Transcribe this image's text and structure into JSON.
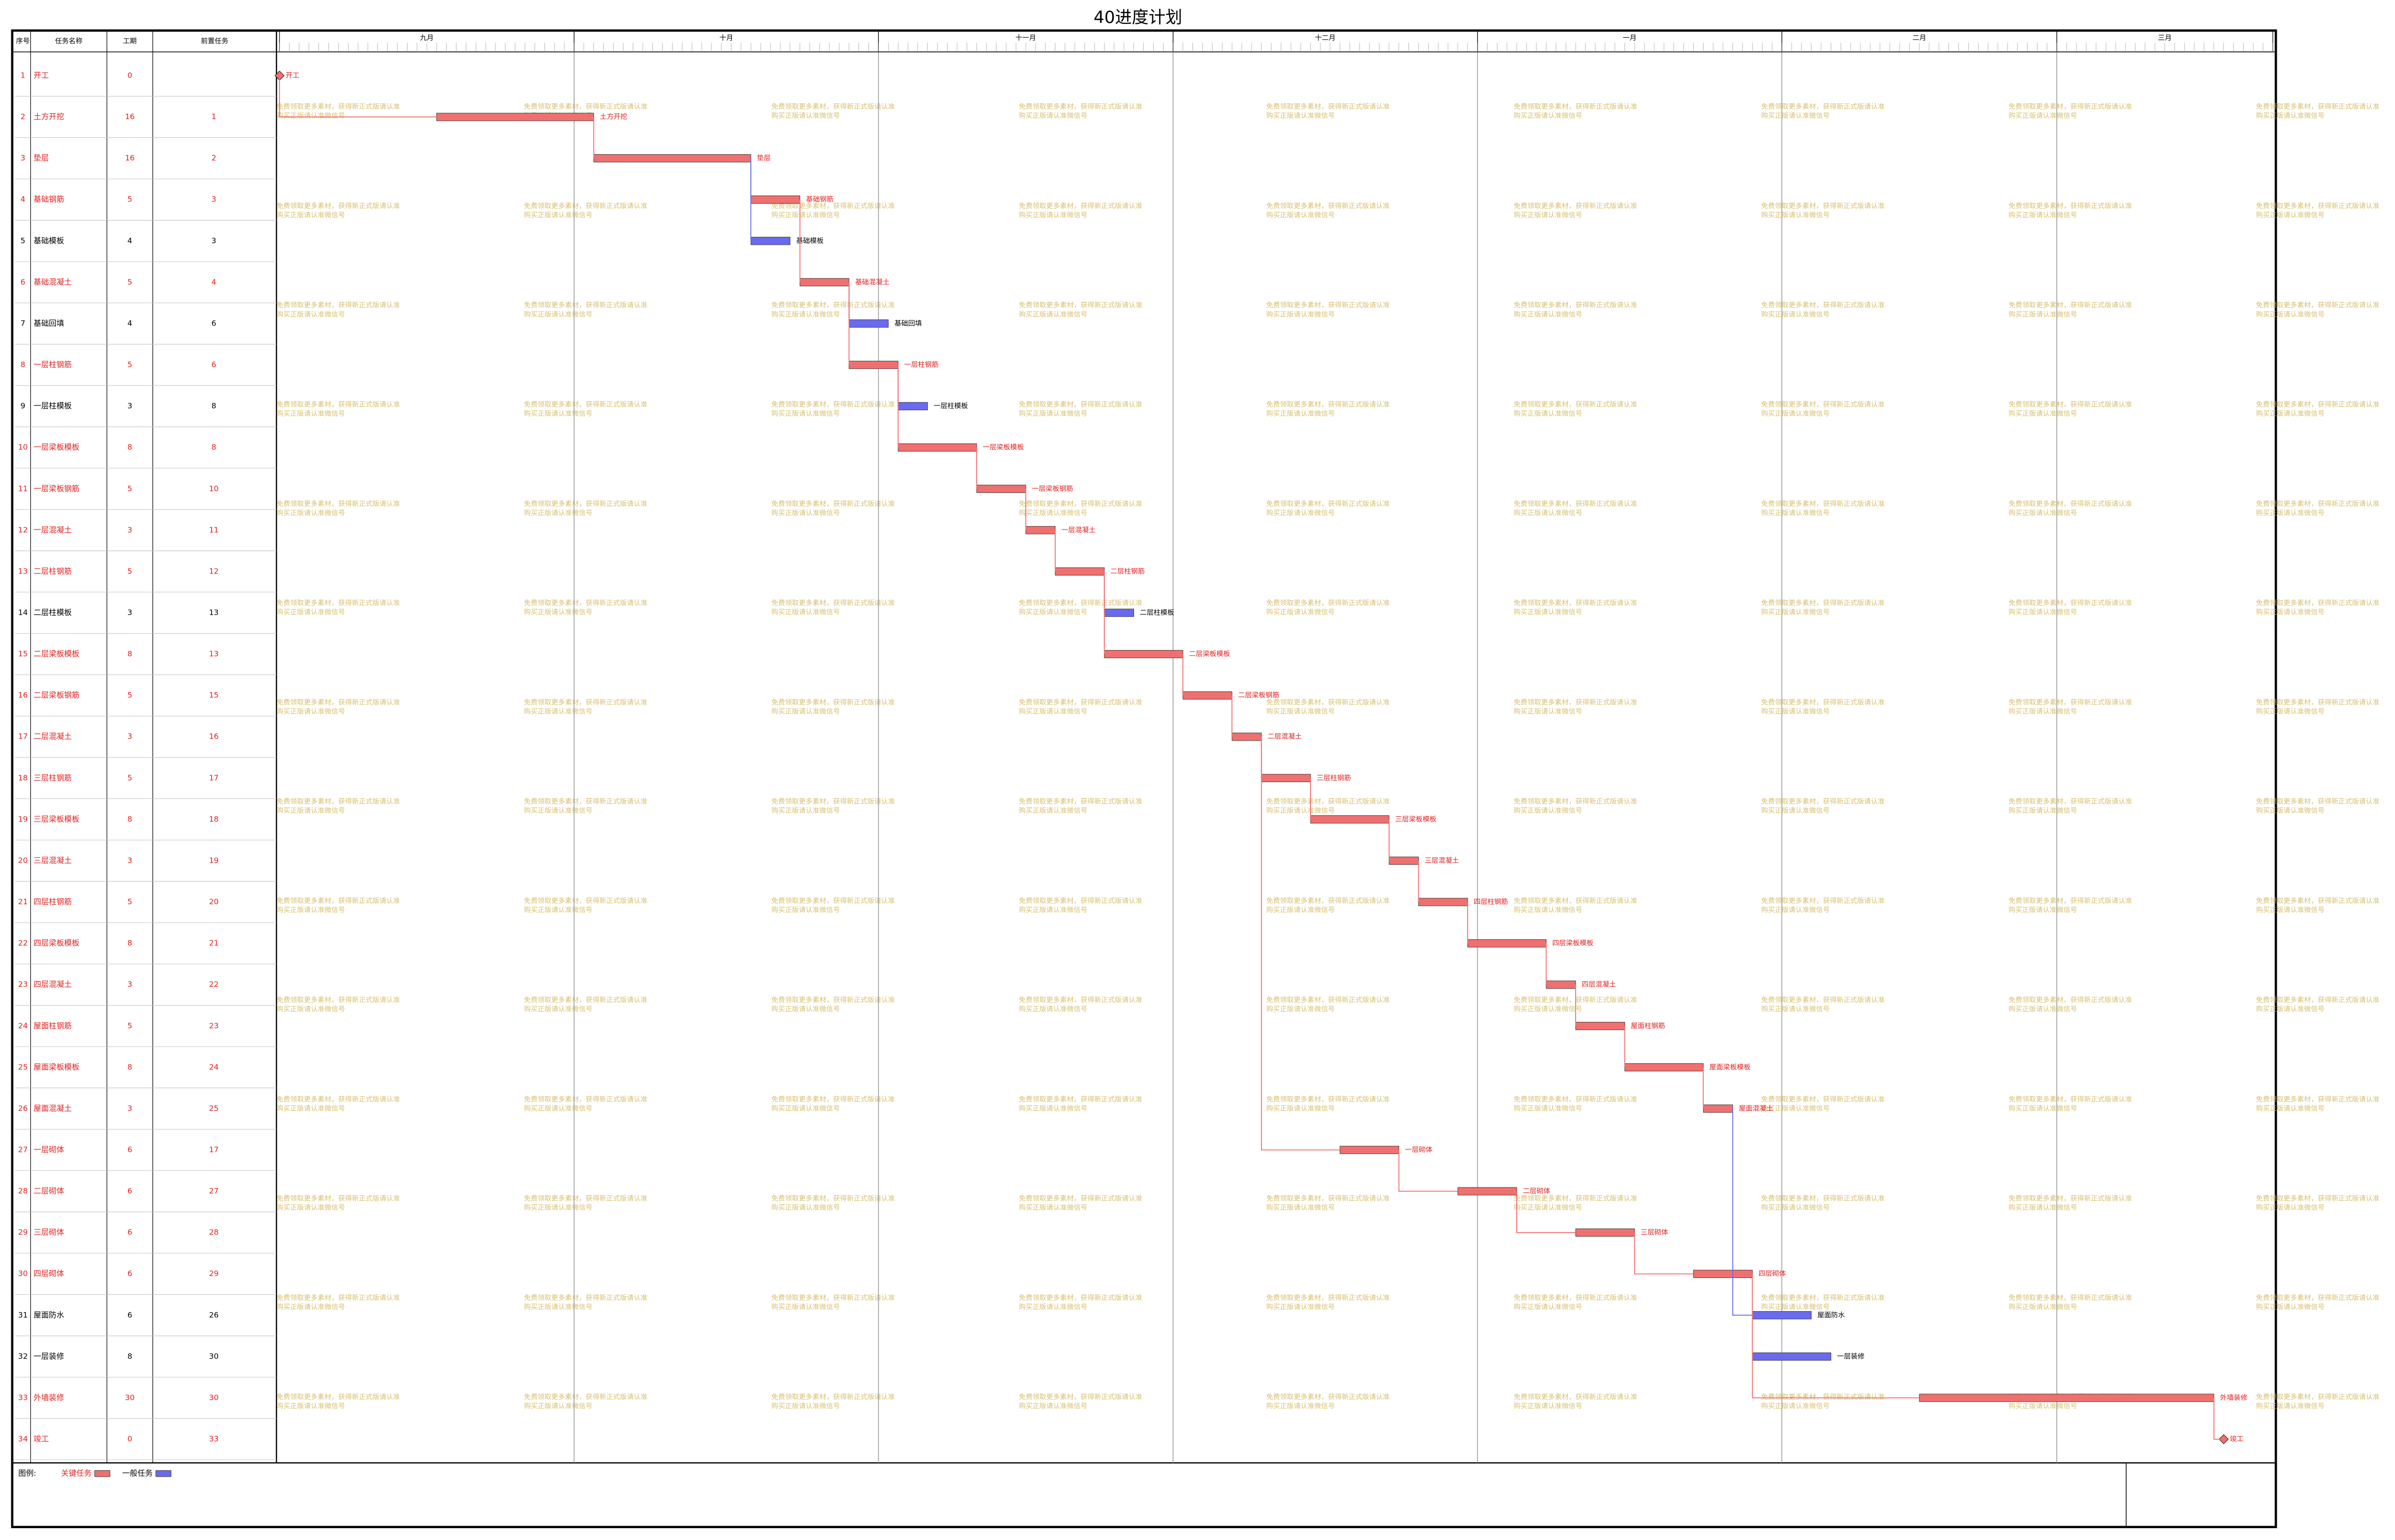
{
  "title": "40进度计划",
  "table_headers": [
    "序号",
    "任务名称",
    "工期",
    "前置任务"
  ],
  "months": [
    {
      "name": "九月",
      "days": 30
    },
    {
      "name": "十月",
      "days": 31
    },
    {
      "name": "十一月",
      "days": 30
    },
    {
      "name": "十二月",
      "days": 31
    },
    {
      "name": "一月",
      "days": 31
    },
    {
      "name": "二月",
      "days": 28
    },
    {
      "name": "三月",
      "days": 22
    }
  ],
  "legend_title": "图例:",
  "legend": [
    {
      "name": "关键任务",
      "color": "#f07070"
    },
    {
      "name": "一般任务",
      "color": "#6a6af0"
    }
  ],
  "watermark": [
    "免费领取更多素材，获得新正式版请认准",
    "购买正版请认准微信号"
  ],
  "tasks": [
    {
      "id": "1",
      "name": "开工",
      "start": 0,
      "duration": 0,
      "pred": "",
      "critical": true
    },
    {
      "id": "2",
      "name": "土方开挖",
      "start": 16,
      "duration": 16,
      "pred": "1",
      "critical": true
    },
    {
      "id": "3",
      "name": "垫层",
      "start": 32,
      "duration": 16,
      "pred": "2",
      "critical": true
    },
    {
      "id": "4",
      "name": "基础钢筋",
      "start": 48,
      "duration": 5,
      "pred": "3",
      "critical": true
    },
    {
      "id": "5",
      "name": "基础模板",
      "start": 48,
      "duration": 4,
      "pred": "3",
      "critical": false
    },
    {
      "id": "6",
      "name": "基础混凝土",
      "start": 53,
      "duration": 5,
      "pred": "4",
      "critical": true
    },
    {
      "id": "7",
      "name": "基础回填",
      "start": 58,
      "duration": 4,
      "pred": "6",
      "critical": false
    },
    {
      "id": "8",
      "name": "一层柱钢筋",
      "start": 58,
      "duration": 5,
      "pred": "6",
      "critical": true
    },
    {
      "id": "9",
      "name": "一层柱模板",
      "start": 63,
      "duration": 3,
      "pred": "8",
      "critical": false
    },
    {
      "id": "10",
      "name": "一层梁板模板",
      "start": 63,
      "duration": 8,
      "pred": "8",
      "critical": true
    },
    {
      "id": "11",
      "name": "一层梁板钢筋",
      "start": 71,
      "duration": 5,
      "pred": "10",
      "critical": true
    },
    {
      "id": "12",
      "name": "一层混凝土",
      "start": 76,
      "duration": 3,
      "pred": "11",
      "critical": true
    },
    {
      "id": "13",
      "name": "二层柱钢筋",
      "start": 79,
      "duration": 5,
      "pred": "12",
      "critical": true
    },
    {
      "id": "14",
      "name": "二层柱模板",
      "start": 84,
      "duration": 3,
      "pred": "13",
      "critical": false
    },
    {
      "id": "15",
      "name": "二层梁板模板",
      "start": 84,
      "duration": 8,
      "pred": "13",
      "critical": true
    },
    {
      "id": "16",
      "name": "二层梁板钢筋",
      "start": 92,
      "duration": 5,
      "pred": "15",
      "critical": true
    },
    {
      "id": "17",
      "name": "二层混凝土",
      "start": 97,
      "duration": 3,
      "pred": "16",
      "critical": true
    },
    {
      "id": "18",
      "name": "三层柱钢筋",
      "start": 100,
      "duration": 5,
      "pred": "17",
      "critical": true
    },
    {
      "id": "19",
      "name": "三层梁板模板",
      "start": 105,
      "duration": 8,
      "pred": "18",
      "critical": true
    },
    {
      "id": "20",
      "name": "三层混凝土",
      "start": 113,
      "duration": 3,
      "pred": "19",
      "critical": true
    },
    {
      "id": "21",
      "name": "四层柱钢筋",
      "start": 116,
      "duration": 5,
      "pred": "20",
      "critical": true
    },
    {
      "id": "22",
      "name": "四层梁板模板",
      "start": 121,
      "duration": 8,
      "pred": "21",
      "critical": true
    },
    {
      "id": "23",
      "name": "四层混凝土",
      "start": 129,
      "duration": 3,
      "pred": "22",
      "critical": true
    },
    {
      "id": "24",
      "name": "屋面柱钢筋",
      "start": 132,
      "duration": 5,
      "pred": "23",
      "critical": true
    },
    {
      "id": "25",
      "name": "屋面梁板模板",
      "start": 137,
      "duration": 8,
      "pred": "24",
      "critical": true
    },
    {
      "id": "26",
      "name": "屋面混凝土",
      "start": 145,
      "duration": 3,
      "pred": "25",
      "critical": true
    },
    {
      "id": "27",
      "name": "一层砌体",
      "start": 108,
      "duration": 6,
      "pred": "17",
      "critical": true
    },
    {
      "id": "28",
      "name": "二层砌体",
      "start": 120,
      "duration": 6,
      "pred": "27",
      "critical": true
    },
    {
      "id": "29",
      "name": "三层砌体",
      "start": 132,
      "duration": 6,
      "pred": "28",
      "critical": true
    },
    {
      "id": "30",
      "name": "四层砌体",
      "start": 144,
      "duration": 6,
      "pred": "29",
      "critical": true
    },
    {
      "id": "31",
      "name": "屋面防水",
      "start": 150,
      "duration": 6,
      "pred": "26",
      "critical": false
    },
    {
      "id": "32",
      "name": "一层装修",
      "start": 150,
      "duration": 8,
      "pred": "30",
      "critical": false
    },
    {
      "id": "33",
      "name": "外墙装修",
      "start": 167,
      "duration": 30,
      "pred": "30",
      "critical": true
    },
    {
      "id": "34",
      "name": "竣工",
      "start": 198,
      "duration": 0,
      "pred": "33",
      "critical": true
    }
  ]
}
